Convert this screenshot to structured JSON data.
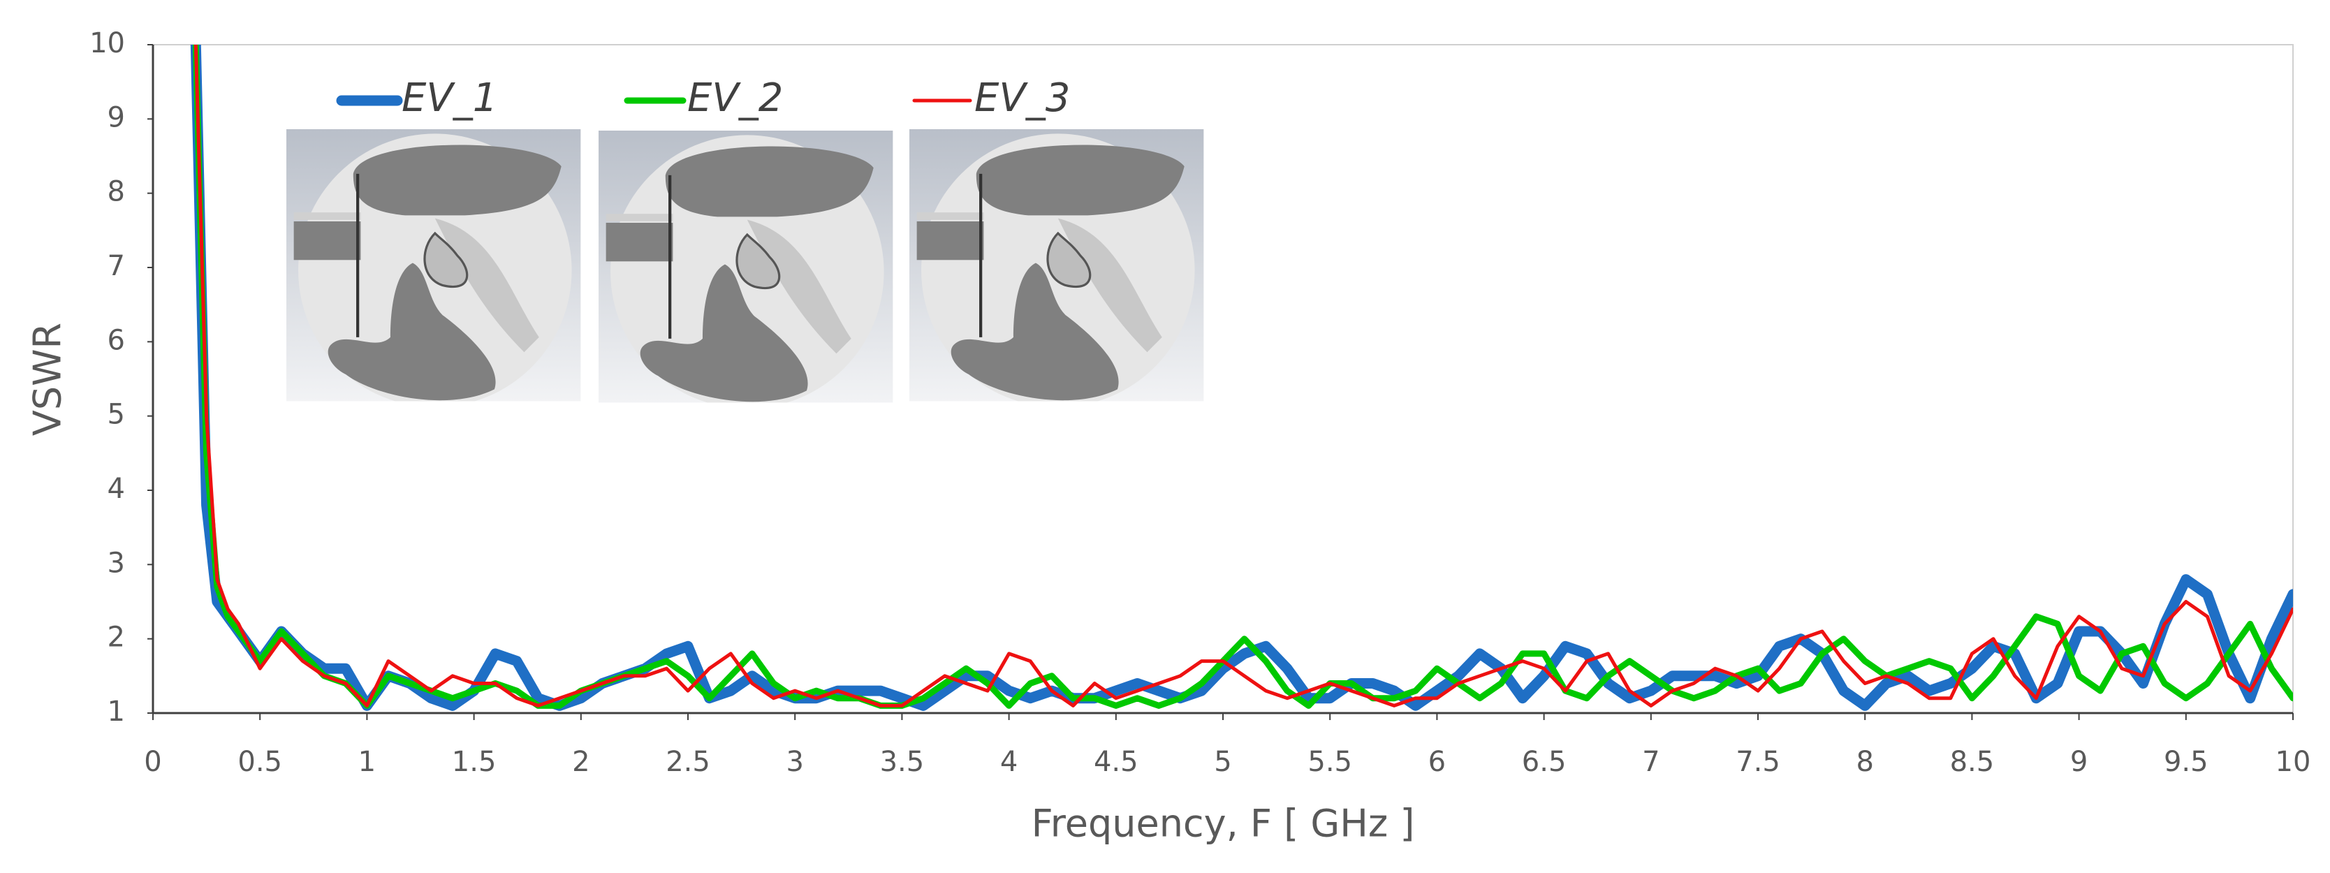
{
  "chart_data": {
    "type": "line",
    "xlabel": "Frequency, F [ GHz ]",
    "ylabel": "VSWR",
    "x": [
      0.2,
      0.25,
      0.3,
      0.35,
      0.4,
      0.5,
      0.6,
      0.7,
      0.8,
      0.9,
      1.0,
      1.1,
      1.2,
      1.3,
      1.4,
      1.5,
      1.6,
      1.7,
      1.8,
      1.9,
      2.0,
      2.1,
      2.2,
      2.3,
      2.4,
      2.5,
      2.6,
      2.7,
      2.8,
      2.9,
      3.0,
      3.1,
      3.2,
      3.3,
      3.4,
      3.5,
      3.6,
      3.7,
      3.8,
      3.9,
      4.0,
      4.1,
      4.2,
      4.3,
      4.4,
      4.5,
      4.6,
      4.7,
      4.8,
      4.9,
      5.0,
      5.1,
      5.2,
      5.3,
      5.4,
      5.5,
      5.6,
      5.7,
      5.8,
      5.9,
      6.0,
      6.1,
      6.2,
      6.3,
      6.4,
      6.5,
      6.6,
      6.7,
      6.8,
      6.9,
      7.0,
      7.1,
      7.2,
      7.3,
      7.4,
      7.5,
      7.6,
      7.7,
      7.8,
      7.9,
      8.0,
      8.1,
      8.2,
      8.3,
      8.4,
      8.5,
      8.6,
      8.7,
      8.8,
      8.9,
      9.0,
      9.1,
      9.2,
      9.3,
      9.4,
      9.5,
      9.6,
      9.7,
      9.8,
      9.9,
      10.0
    ],
    "series": [
      {
        "name": "EV_1",
        "color": "#1f6fc5",
        "values": [
          10,
          3.8,
          2.5,
          2.3,
          2.1,
          1.7,
          2.1,
          1.8,
          1.6,
          1.6,
          1.1,
          1.5,
          1.4,
          1.2,
          1.1,
          1.3,
          1.8,
          1.7,
          1.2,
          1.1,
          1.2,
          1.4,
          1.5,
          1.6,
          1.8,
          1.9,
          1.2,
          1.3,
          1.5,
          1.3,
          1.2,
          1.2,
          1.3,
          1.3,
          1.3,
          1.2,
          1.1,
          1.3,
          1.5,
          1.5,
          1.3,
          1.2,
          1.3,
          1.2,
          1.2,
          1.3,
          1.4,
          1.3,
          1.2,
          1.3,
          1.6,
          1.8,
          1.9,
          1.6,
          1.2,
          1.2,
          1.4,
          1.4,
          1.3,
          1.1,
          1.3,
          1.5,
          1.8,
          1.6,
          1.2,
          1.5,
          1.9,
          1.8,
          1.4,
          1.2,
          1.3,
          1.5,
          1.5,
          1.5,
          1.4,
          1.5,
          1.9,
          2.0,
          1.8,
          1.3,
          1.1,
          1.4,
          1.5,
          1.3,
          1.4,
          1.6,
          1.9,
          1.8,
          1.2,
          1.4,
          2.1,
          2.1,
          1.8,
          1.4,
          2.2,
          2.8,
          2.6,
          1.8,
          1.2,
          2.0,
          2.6
        ]
      },
      {
        "name": "EV_2",
        "color": "#00c800",
        "values": [
          10,
          4.5,
          2.7,
          2.3,
          2.1,
          1.7,
          2.1,
          1.8,
          1.5,
          1.4,
          1.1,
          1.5,
          1.4,
          1.3,
          1.2,
          1.3,
          1.4,
          1.3,
          1.1,
          1.1,
          1.3,
          1.4,
          1.5,
          1.6,
          1.7,
          1.5,
          1.2,
          1.5,
          1.8,
          1.4,
          1.2,
          1.3,
          1.2,
          1.2,
          1.1,
          1.1,
          1.2,
          1.4,
          1.6,
          1.4,
          1.1,
          1.4,
          1.5,
          1.2,
          1.2,
          1.1,
          1.2,
          1.1,
          1.2,
          1.4,
          1.7,
          2.0,
          1.7,
          1.3,
          1.1,
          1.4,
          1.4,
          1.2,
          1.2,
          1.3,
          1.6,
          1.4,
          1.2,
          1.4,
          1.8,
          1.8,
          1.3,
          1.2,
          1.5,
          1.7,
          1.5,
          1.3,
          1.2,
          1.3,
          1.5,
          1.6,
          1.3,
          1.4,
          1.8,
          2.0,
          1.7,
          1.5,
          1.6,
          1.7,
          1.6,
          1.2,
          1.5,
          1.9,
          2.3,
          2.2,
          1.5,
          1.3,
          1.8,
          1.9,
          1.4,
          1.2,
          1.4,
          1.8,
          2.2,
          1.6,
          1.2
        ]
      },
      {
        "name": "EV_3",
        "color": "#ee1111",
        "values": [
          10,
          5,
          2.8,
          2.4,
          2.2,
          1.6,
          2.0,
          1.7,
          1.5,
          1.4,
          1.1,
          1.7,
          1.5,
          1.3,
          1.5,
          1.4,
          1.4,
          1.2,
          1.1,
          1.2,
          1.3,
          1.4,
          1.5,
          1.5,
          1.6,
          1.3,
          1.6,
          1.8,
          1.4,
          1.2,
          1.3,
          1.2,
          1.3,
          1.2,
          1.1,
          1.1,
          1.3,
          1.5,
          1.4,
          1.3,
          1.8,
          1.7,
          1.3,
          1.1,
          1.4,
          1.2,
          1.3,
          1.4,
          1.5,
          1.7,
          1.7,
          1.5,
          1.3,
          1.2,
          1.3,
          1.4,
          1.3,
          1.2,
          1.1,
          1.2,
          1.2,
          1.4,
          1.5,
          1.6,
          1.7,
          1.6,
          1.3,
          1.7,
          1.8,
          1.3,
          1.1,
          1.3,
          1.4,
          1.6,
          1.5,
          1.3,
          1.6,
          2.0,
          2.1,
          1.7,
          1.4,
          1.5,
          1.4,
          1.2,
          1.2,
          1.8,
          2.0,
          1.5,
          1.2,
          1.9,
          2.3,
          2.1,
          1.6,
          1.5,
          2.2,
          2.5,
          2.3,
          1.5,
          1.3,
          1.8,
          2.4
        ]
      }
    ],
    "xlim": [
      0,
      10
    ],
    "xticks": [
      0,
      0.5,
      1,
      1.5,
      2,
      2.5,
      3,
      3.5,
      4,
      4.5,
      5,
      5.5,
      6,
      6.5,
      7,
      7.5,
      8,
      8.5,
      9,
      9.5,
      10
    ],
    "ylim": [
      1,
      10
    ],
    "yticks": [
      1,
      2,
      3,
      4,
      5,
      6,
      7,
      8,
      9,
      10
    ],
    "grid": false
  }
}
